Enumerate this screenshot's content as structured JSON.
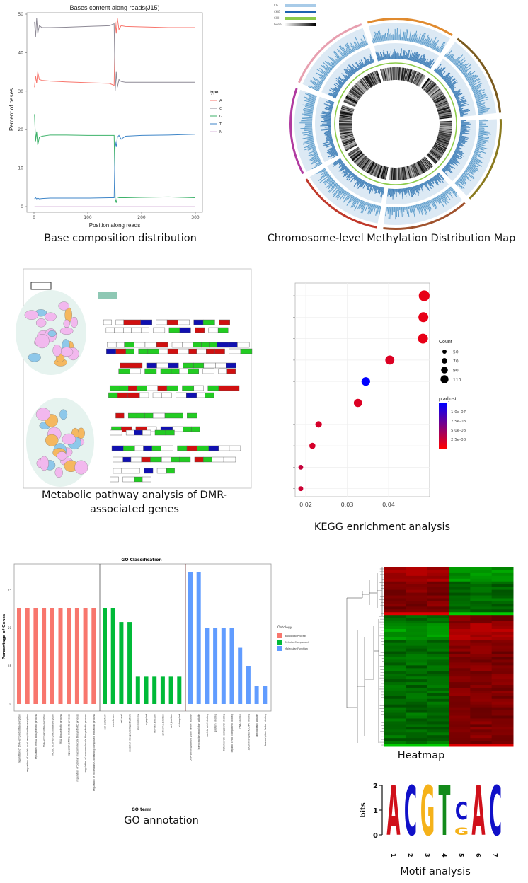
{
  "captions": {
    "base": "Base composition distribution",
    "circos": "Chromosome-level Methylation Distribution Map",
    "pathway_line1": "Metabolic pathway analysis of DMR-",
    "pathway_line2": "associated genes",
    "kegg": "KEGG enrichment analysis",
    "go": "GO annotation",
    "heatmap": "Heatmap",
    "motif": "Motif analysis"
  },
  "chart_data": [
    {
      "id": "base_composition",
      "type": "line",
      "title": "Bases content along reads(J15)",
      "xlabel": "Position along reads",
      "ylabel": "Percent of bases",
      "xlim": [
        0,
        300
      ],
      "ylim": [
        0,
        50
      ],
      "xticks": [
        "0",
        "100",
        "200",
        "300"
      ],
      "yticks": [
        "0",
        "10",
        "20",
        "30",
        "40",
        "50"
      ],
      "legend_title": "type",
      "legend_position": "right",
      "x": [
        1,
        3,
        5,
        7,
        10,
        15,
        30,
        60,
        100,
        140,
        149,
        151,
        153,
        155,
        158,
        162,
        170,
        200,
        250,
        300
      ],
      "series": [
        {
          "name": "A",
          "color": "#F8766D",
          "values": [
            31,
            34,
            32,
            35,
            33,
            32.8,
            32.6,
            32.4,
            32.2,
            32,
            31.5,
            48,
            45,
            49,
            46,
            47,
            46.8,
            46.7,
            46.5,
            46.5
          ]
        },
        {
          "name": "C",
          "color": "#8E8A96",
          "values": [
            48,
            44,
            49,
            45,
            47,
            46.5,
            46.5,
            46.6,
            46.8,
            47,
            47.5,
            30,
            35,
            31,
            33,
            32.5,
            32.3,
            32.3,
            32.3,
            32.3
          ]
        },
        {
          "name": "G",
          "color": "#3DB26A",
          "values": [
            24,
            17,
            19.5,
            16,
            18,
            18.3,
            18.6,
            18.6,
            18.5,
            18.5,
            18.5,
            2,
            1,
            2.5,
            2.3,
            2.3,
            2.3,
            2.4,
            2.5,
            2.3
          ]
        },
        {
          "name": "T",
          "color": "#3F86C8",
          "values": [
            2,
            2.3,
            2,
            2.2,
            2,
            2.1,
            2.2,
            2.2,
            2.2,
            2.3,
            2.3,
            17,
            15.5,
            18,
            18.5,
            17.5,
            18.3,
            18.5,
            18.6,
            18.8
          ]
        },
        {
          "name": "N",
          "color": "#D9B8DE",
          "values": [
            0,
            0,
            0,
            0,
            0,
            0,
            0,
            0,
            0,
            0,
            0,
            0,
            0,
            0,
            0,
            0,
            0,
            0,
            0,
            0
          ]
        }
      ]
    },
    {
      "id": "methylation_circos",
      "type": "circos",
      "legend": [
        {
          "label": "CG",
          "color": "#A8CBE8"
        },
        {
          "label": "CHG",
          "color": "#1F63B0"
        },
        {
          "label": "CHH",
          "color": "#8CCB4A"
        },
        {
          "label": "Gene",
          "color": "#000000"
        }
      ],
      "chromosome_colors": [
        "#E08A2E",
        "#7A5A1E",
        "#8A7A1E",
        "#A0522D",
        "#C0392B",
        "#B03AA0",
        "#E7A0B0"
      ]
    },
    {
      "id": "kegg_enrichment",
      "type": "scatter",
      "xlim": [
        0.017,
        0.05
      ],
      "xticks": [
        "0.02",
        "0.03",
        "0.04"
      ],
      "grid": true,
      "points": [
        {
          "x": 0.0486,
          "count": 110,
          "p_adjust": 1e-08
        },
        {
          "x": 0.0484,
          "count": 100,
          "p_adjust": 1e-08
        },
        {
          "x": 0.0483,
          "count": 100,
          "p_adjust": 1e-08
        },
        {
          "x": 0.0403,
          "count": 90,
          "p_adjust": 1.5e-08
        },
        {
          "x": 0.0345,
          "count": 85,
          "p_adjust": 1.1e-07
        },
        {
          "x": 0.0326,
          "count": 80,
          "p_adjust": 1.5e-08
        },
        {
          "x": 0.0231,
          "count": 60,
          "p_adjust": 1.8e-08
        },
        {
          "x": 0.0216,
          "count": 55,
          "p_adjust": 1.8e-08
        },
        {
          "x": 0.0188,
          "count": 40,
          "p_adjust": 2.5e-08
        },
        {
          "x": 0.0188,
          "count": 40,
          "p_adjust": 2.2e-08
        }
      ],
      "size_legend": {
        "title": "Count",
        "values": [
          "50",
          "70",
          "90",
          "110"
        ]
      },
      "color_legend": {
        "title": "p.adjust",
        "labels": [
          "1.0e-07",
          "7.5e-08",
          "5.0e-08",
          "2.5e-08"
        ],
        "low_color": "#FF0000",
        "high_color": "#0000FF"
      }
    },
    {
      "id": "go_classification",
      "type": "bar",
      "title": "GO Classification",
      "xlabel": "GO term",
      "ylabel": "Percentage of Genes",
      "ylim": [
        0,
        90
      ],
      "yticks": [
        "0",
        "25",
        "50",
        "75"
      ],
      "legend_title": "Ontology",
      "series": [
        {
          "name": "Biological Process",
          "color": "#F8766D",
          "categories": [
            "regulation of DNA-templated transcription",
            "regulation of nucleic acid-templated transcription",
            "regulation of RNA biosynthetic process",
            "DNA-templated transcription",
            "nucleic acid-templated transcription",
            "RNA biosynthetic process",
            "regulation of RNA metabolic process",
            "regulation of cellular macromolecule biosynthetic process",
            "regulation of macromolecule biosynthetic process",
            "regulation of nucleobase-containing compound metabolic process"
          ],
          "values": [
            63,
            63,
            63,
            63,
            63,
            63,
            63,
            63,
            63,
            63
          ]
        },
        {
          "name": "Cellular Component",
          "color": "#00BA38",
          "categories": [
            "cell periphery",
            "membrane",
            "cell wall",
            "external encapsulating structure",
            "plasmodesma",
            "symplast",
            "cell-cell junction",
            "anchoring junction",
            "cell junction",
            "chloroplast"
          ],
          "values": [
            63,
            63,
            54,
            54,
            18,
            18,
            18,
            18,
            18,
            18
          ]
        },
        {
          "name": "Molecular Function",
          "color": "#619CFF",
          "categories": [
            "DNA-binding transcription factor activity",
            "transcription regulator activity",
            "nucleic acid binding",
            "protein binding",
            "heterocyclic compound binding",
            "organic cyclic compound binding",
            "DNA binding",
            "sequence-specific DNA binding",
            "antioxidant activity",
            "transcription factor binding"
          ],
          "values": [
            87,
            87,
            50,
            50,
            50,
            50,
            37,
            25,
            12,
            12
          ]
        }
      ]
    },
    {
      "id": "heatmap",
      "type": "heatmap",
      "low_color": "#00C000",
      "mid_color": "#000000",
      "high_color": "#D00000",
      "column_groups": 2,
      "columns": 6
    },
    {
      "id": "motif_logo",
      "type": "sequence_logo",
      "ylabel": "bits",
      "ylim": [
        0,
        2
      ],
      "yticks": [
        "0",
        "1",
        "2"
      ],
      "positions": [
        {
          "pos": "1",
          "stack": [
            {
              "letter": "A",
              "bits": 2.0
            }
          ]
        },
        {
          "pos": "2",
          "stack": [
            {
              "letter": "C",
              "bits": 2.0
            }
          ]
        },
        {
          "pos": "3",
          "stack": [
            {
              "letter": "G",
              "bits": 2.0
            }
          ]
        },
        {
          "pos": "4",
          "stack": [
            {
              "letter": "T",
              "bits": 2.0
            }
          ]
        },
        {
          "pos": "5",
          "stack": [
            {
              "letter": "G",
              "bits": 0.3
            },
            {
              "letter": "C",
              "bits": 0.7
            }
          ]
        },
        {
          "pos": "6",
          "stack": [
            {
              "letter": "A",
              "bits": 2.0
            }
          ]
        },
        {
          "pos": "7",
          "stack": [
            {
              "letter": "C",
              "bits": 2.0
            }
          ]
        }
      ],
      "letter_colors": {
        "A": "#D0101A",
        "C": "#1010C8",
        "G": "#F5B21A",
        "T": "#138A1A"
      }
    }
  ]
}
